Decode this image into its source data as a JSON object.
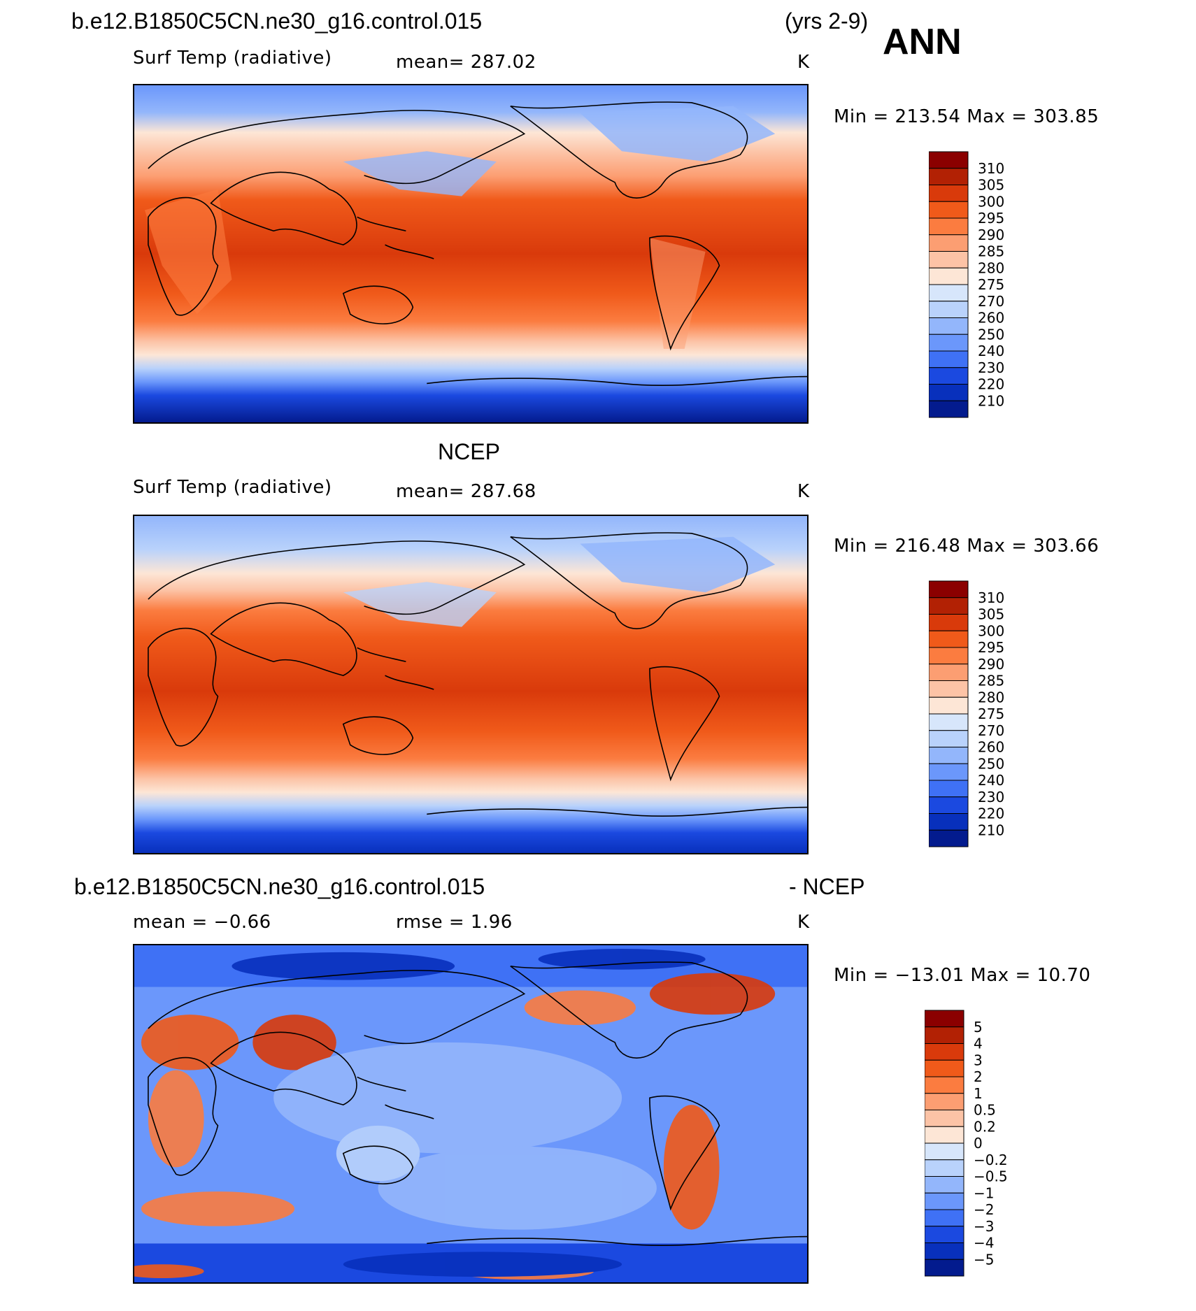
{
  "header": {
    "case_title": "b.e12.B1850C5CN.ne30_g16.control.015",
    "years": "(yrs 2-9)",
    "season": "ANN"
  },
  "panels": [
    {
      "id": "model",
      "variable": "Surf Temp (radiative)",
      "mean_text": "mean=  287.02",
      "units": "K",
      "minmax": "Min  =  213.54  Max  =  303.85",
      "colorbar_labels": [
        "310",
        "305",
        "300",
        "295",
        "290",
        "285",
        "280",
        "275",
        "270",
        "260",
        "250",
        "240",
        "230",
        "220",
        "210"
      ]
    },
    {
      "id": "obs",
      "title": "NCEP",
      "variable": "Surf Temp (radiative)",
      "mean_text": "mean=  287.68",
      "units": "K",
      "minmax": "Min  =  216.48  Max  =  303.66",
      "colorbar_labels": [
        "310",
        "305",
        "300",
        "295",
        "290",
        "285",
        "280",
        "275",
        "270",
        "260",
        "250",
        "240",
        "230",
        "220",
        "210"
      ]
    },
    {
      "id": "diff",
      "title_left": "b.e12.B1850C5CN.ne30_g16.control.015",
      "title_right": "- NCEP",
      "mean_text": "mean  =   −0.66",
      "rmse_text": "rmse  =     1.96",
      "units": "K",
      "minmax": "Min  =  −13.01  Max  =    10.70",
      "colorbar_labels": [
        "5",
        "4",
        "3",
        "2",
        "1",
        "0.5",
        "0.2",
        "0",
        "−0.2",
        "−0.5",
        "−1",
        "−2",
        "−3",
        "−4",
        "−5"
      ]
    }
  ],
  "colors": {
    "scale": [
      "#8b0000",
      "#b22104",
      "#d93a0b",
      "#f05a1a",
      "#fb7c40",
      "#fc9e72",
      "#fcc3a6",
      "#fde6d6",
      "#d7e6fb",
      "#b9d2fb",
      "#93b6fb",
      "#6b97fb",
      "#3f71f5",
      "#1b49e0",
      "#0830bc",
      "#031b8e"
    ]
  }
}
